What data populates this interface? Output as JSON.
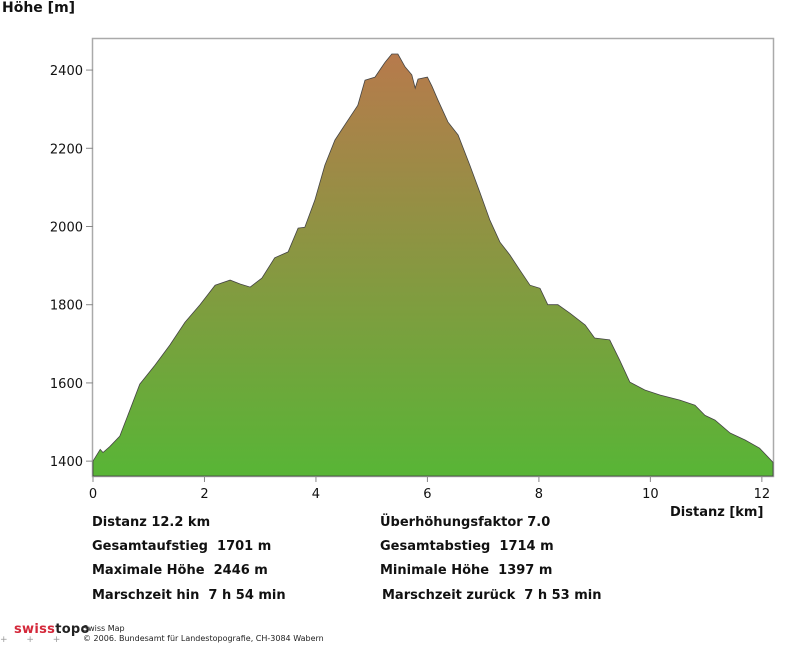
{
  "chart_data": {
    "type": "area",
    "title": "",
    "ylabel": "Höhe [m]",
    "xlabel": "Distanz [km]",
    "xlim": [
      0,
      12.2
    ],
    "ylim": [
      1362,
      2482
    ],
    "xticks": [
      0,
      2,
      4,
      6,
      8,
      10,
      12
    ],
    "yticks": [
      1400,
      1600,
      1800,
      2000,
      2200,
      2400
    ],
    "grid": false,
    "fill_gradient": {
      "bottom": "#58b536",
      "top": "#b77a4c"
    },
    "x": [
      0,
      0.13,
      0.18,
      0.3,
      0.48,
      0.66,
      0.84,
      1.11,
      1.38,
      1.65,
      1.92,
      2.19,
      2.46,
      2.64,
      2.82,
      3.03,
      3.26,
      3.5,
      3.68,
      3.8,
      3.98,
      4.16,
      4.34,
      4.52,
      4.75,
      4.88,
      5.06,
      5.24,
      5.36,
      5.47,
      5.6,
      5.72,
      5.78,
      5.83,
      6.0,
      6.08,
      6.19,
      6.37,
      6.55,
      6.76,
      6.94,
      7.12,
      7.3,
      7.48,
      7.66,
      7.84,
      8.02,
      8.16,
      8.34,
      8.56,
      8.83,
      9.0,
      9.27,
      9.45,
      9.63,
      9.9,
      10.17,
      10.53,
      10.8,
      10.98,
      11.16,
      11.43,
      11.7,
      11.96,
      12.2
    ],
    "y": [
      1400,
      1430,
      1422,
      1437,
      1464,
      1530,
      1597,
      1645,
      1697,
      1755,
      1800,
      1850,
      1863,
      1853,
      1845,
      1868,
      1920,
      1935,
      1996,
      1998,
      2067,
      2157,
      2221,
      2260,
      2310,
      2374,
      2382,
      2420,
      2441,
      2441,
      2408,
      2388,
      2354,
      2377,
      2382,
      2359,
      2323,
      2267,
      2234,
      2157,
      2088,
      2016,
      1960,
      1927,
      1888,
      1850,
      1842,
      1800,
      1800,
      1778,
      1748,
      1715,
      1710,
      1658,
      1602,
      1582,
      1569,
      1556,
      1543,
      1517,
      1505,
      1472,
      1454,
      1433,
      1397
    ]
  },
  "stats": {
    "distanz": "Distanz 12.2 km",
    "ueberhoehung": "Überhöhungsfaktor 7.0",
    "aufstieg": "Gesamtaufstieg  1701 m",
    "abstieg": "Gesamtabstieg  1714 m",
    "max": "Maximale Höhe  2446 m",
    "min": "Minimale Höhe  1397 m",
    "hin": "Marschzeit hin  7 h 54 min",
    "zurueck": "Marschzeit zurück  7 h 53 min"
  },
  "footer": {
    "logo_a": "swiss",
    "logo_b": "topo",
    "product": "Swiss Map",
    "copyright": "© 2006. Bundesamt für Landestopografie, CH-3084 Wabern",
    "marks": "+ + +"
  }
}
